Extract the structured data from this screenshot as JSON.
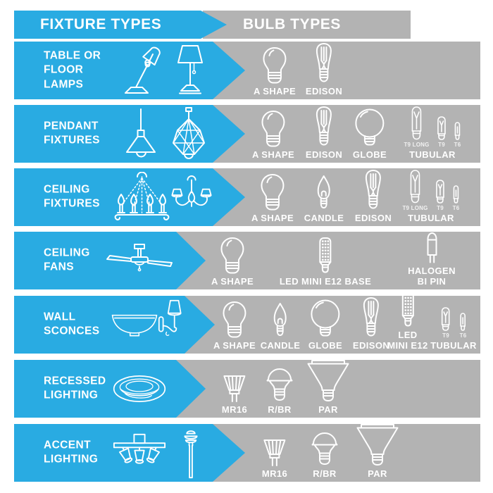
{
  "colors": {
    "blue": "#29abe2",
    "gray": "#b3b3b3",
    "text": "#ffffff"
  },
  "header": {
    "fixture_types": "FIXTURE TYPES",
    "bulb_types": "BULB TYPES"
  },
  "rows": [
    {
      "fixture": {
        "label": "TABLE OR\nFLOOR\nLAMPS",
        "icons": [
          "desk-lamp",
          "table-lamp"
        ]
      },
      "bulbs": [
        {
          "label": "A SHAPE",
          "icon": "a-shape"
        },
        {
          "label": "EDISON",
          "icon": "edison"
        }
      ]
    },
    {
      "fixture": {
        "label": "PENDANT\nFIXTURES",
        "icons": [
          "cone-pendant",
          "geometric-pendant"
        ]
      },
      "bulbs": [
        {
          "label": "A SHAPE",
          "icon": "a-shape"
        },
        {
          "label": "EDISON",
          "icon": "edison"
        },
        {
          "label": "GLOBE",
          "icon": "globe"
        },
        {
          "label": "TUBULAR",
          "icon": "tubular",
          "variants": [
            {
              "label": "T9 LONG",
              "icon": "t9-long"
            },
            {
              "label": "T9",
              "icon": "t9"
            },
            {
              "label": "T6",
              "icon": "t6"
            }
          ]
        }
      ]
    },
    {
      "fixture": {
        "label": "CEILING\nFIXTURES",
        "icons": [
          "candle-chandelier",
          "shade-chandelier"
        ]
      },
      "bulbs": [
        {
          "label": "A SHAPE",
          "icon": "a-shape"
        },
        {
          "label": "CANDLE",
          "icon": "candle"
        },
        {
          "label": "EDISON",
          "icon": "edison"
        },
        {
          "label": "TUBULAR",
          "icon": "tubular",
          "variants": [
            {
              "label": "T9 LONG",
              "icon": "t9-long"
            },
            {
              "label": "T9",
              "icon": "t9"
            },
            {
              "label": "T6",
              "icon": "t6"
            }
          ]
        }
      ]
    },
    {
      "fixture": {
        "label": "CEILING\nFANS",
        "icons": [
          "ceiling-fan"
        ]
      },
      "bulbs": [
        {
          "label": "A SHAPE",
          "icon": "a-shape"
        },
        {
          "label": "LED MINI E12 BASE",
          "icon": "led-mini-e12"
        },
        {
          "label": "HALOGEN BI PIN",
          "icon": "halogen-bi-pin"
        }
      ]
    },
    {
      "fixture": {
        "label": "WALL\nSCONCES",
        "icons": [
          "dome-sconce",
          "arm-sconce"
        ]
      },
      "bulbs": [
        {
          "label": "A SHAPE",
          "icon": "a-shape"
        },
        {
          "label": "CANDLE",
          "icon": "candle"
        },
        {
          "label": "GLOBE",
          "icon": "globe"
        },
        {
          "label": "EDISON",
          "icon": "edison"
        },
        {
          "label": "LED\nMINI E12",
          "icon": "led-mini-e12"
        },
        {
          "label": "TUBULAR",
          "icon": "tubular",
          "variants": [
            {
              "label": "T9",
              "icon": "t9"
            },
            {
              "label": "T6",
              "icon": "t6"
            }
          ]
        }
      ]
    },
    {
      "fixture": {
        "label": "RECESSED\nLIGHTING",
        "icons": [
          "recessed-can"
        ]
      },
      "bulbs": [
        {
          "label": "MR16",
          "icon": "mr16"
        },
        {
          "label": "R/BR",
          "icon": "r-br"
        },
        {
          "label": "PAR",
          "icon": "par"
        }
      ]
    },
    {
      "fixture": {
        "label": "ACCENT\nLIGHTING",
        "icons": [
          "track-light",
          "path-light"
        ]
      },
      "bulbs": [
        {
          "label": "MR16",
          "icon": "mr16"
        },
        {
          "label": "R/BR",
          "icon": "r-br"
        },
        {
          "label": "PAR",
          "icon": "par"
        }
      ]
    }
  ]
}
